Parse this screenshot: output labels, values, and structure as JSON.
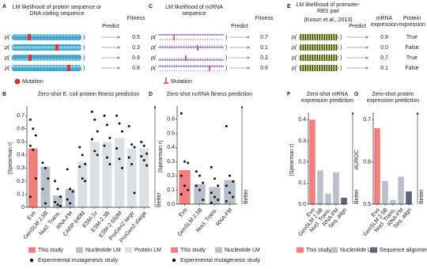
{
  "schematics": [
    {
      "panel": "A",
      "title": "LM likelihood of protein sequence or DNA coding sequence",
      "predict": "Predict",
      "prefix": "p(",
      "suffix": ")",
      "headers": [
        "Fitness"
      ],
      "columns": [
        [
          "0.5",
          "0.3",
          "0.9",
          "0.8"
        ]
      ],
      "legend": "Mutation"
    },
    {
      "panel": "C",
      "title": "LM likelihood of ncRNA sequence",
      "predict": "Predict",
      "prefix": "p(",
      "suffix": ")",
      "headers": [
        "Fitness"
      ],
      "columns": [
        [
          "0.7",
          "0.1",
          "0.2",
          "0.6"
        ]
      ],
      "legend": "Mutation"
    },
    {
      "panel": "E",
      "title": "LM likelihood of promoter-RBS pair",
      "source": "(Kosuri et al., 2013)",
      "predict": "Predict",
      "prefix": "p(",
      "suffix": ")",
      "headers": [
        "mRNA expression",
        "Protein expression"
      ],
      "columns": [
        [
          "0.8",
          "0.0",
          "0.7",
          "0.1"
        ],
        [
          "True",
          "False",
          "True",
          "False"
        ]
      ]
    }
  ],
  "chart_data": [
    {
      "panel": "B",
      "type": "bar",
      "title": "Zero-shot E. coli protein fitness prediction",
      "ylabel": "|Spearman r|",
      "categories": [
        "Evo",
        "GenSLM 2.5B",
        "Nucl. Trans.",
        "RNA-FM",
        "CARP 640M",
        "ESM-1v",
        "ESM-2 3B",
        "ESM-2 650M",
        "ProGen2 large",
        "ProGen2 xlarge"
      ],
      "values": [
        0.45,
        0.31,
        0.09,
        0.14,
        0.35,
        0.5,
        0.5,
        0.53,
        0.45,
        0.45
      ],
      "colors": [
        "#f08080",
        "#b9bfcb",
        "#b9bfcb",
        "#b9bfcb",
        "#dcdfe4",
        "#dcdfe4",
        "#dcdfe4",
        "#dcdfe4",
        "#dcdfe4",
        "#dcdfe4"
      ],
      "points": [
        [
          0.67,
          0.6,
          0.55,
          0.47,
          0.44,
          0.22,
          0.08
        ],
        [
          0.34,
          0.3,
          0.22,
          0.14,
          0.03
        ],
        [
          0.2,
          0.14,
          0.08,
          0.04,
          0.02,
          0.01
        ],
        [
          0.29,
          0.14,
          0.12,
          0.06,
          0.03
        ],
        [
          0.46,
          0.4,
          0.33,
          0.31,
          0.22,
          0.2
        ],
        [
          0.73,
          0.67,
          0.58,
          0.52,
          0.43,
          0.4
        ],
        [
          0.7,
          0.63,
          0.53,
          0.47,
          0.38,
          0.33
        ],
        [
          0.7,
          0.64,
          0.58,
          0.45,
          0.37,
          0.3
        ],
        [
          0.62,
          0.48,
          0.46,
          0.38,
          0.33,
          0.11
        ],
        [
          0.5,
          0.47,
          0.41,
          0.39,
          0.36,
          0.32
        ]
      ],
      "point_color": "#111111",
      "ylim": [
        0,
        0.75
      ],
      "yticks": [
        0,
        0.1,
        0.2,
        0.3,
        0.4,
        0.5,
        0.6,
        0.7
      ],
      "annotation": "Better",
      "legend": [
        {
          "name": "This study",
          "color": "#f08080"
        },
        {
          "name": "Nucleotide LM",
          "color": "#b9bfcb"
        },
        {
          "name": "Protein LM",
          "color": "#dcdfe4"
        },
        {
          "name": "Experimental mutagenesis study",
          "color": "#111111",
          "marker": "dot"
        }
      ]
    },
    {
      "panel": "D",
      "type": "bar",
      "title": "Zero-shot ncRNA fitness prediction",
      "ylabel": "|Spearman r|",
      "categories": [
        "Evo",
        "GenSLM 2.5B",
        "Nucl. Trans.",
        "RNA-FM"
      ],
      "values": [
        0.24,
        0.14,
        0.12,
        0.17
      ],
      "colors": [
        "#f08080",
        "#b9bfcb",
        "#b9bfcb",
        "#b9bfcb"
      ],
      "points": [
        [
          0.64,
          0.3,
          0.29,
          0.2,
          0.13,
          0.1,
          0.07
        ],
        [
          0.23,
          0.2,
          0.15,
          0.13,
          0.1,
          0.03
        ],
        [
          0.26,
          0.18,
          0.13,
          0.08,
          0.05,
          0.03,
          0.01
        ],
        [
          0.55,
          0.2,
          0.16,
          0.13,
          0.08,
          0.05,
          0.02
        ]
      ],
      "point_color": "#111111",
      "ylim": [
        0,
        0.67
      ],
      "yticks": [
        {
          "value": 0,
          "label": "0.0"
        },
        0.1,
        0.2,
        0.3,
        0.4,
        0.5,
        0.6
      ],
      "annotation": "Better",
      "legend": [
        {
          "name": "This study",
          "color": "#f08080"
        },
        {
          "name": "Nucleotide LM",
          "color": "#b9bfcb"
        },
        {
          "name": "Experimental mutagenesis study",
          "color": "#111111",
          "marker": "dot"
        }
      ]
    },
    {
      "panel": "F",
      "type": "bar",
      "title": "Zero-shot mRNA expression prediction",
      "ylabel": "|Spearman r|",
      "categories": [
        "Evo",
        "GenSLM 2.5B",
        "Nucl. Trans.",
        "RNA-FM",
        "Seq. align"
      ],
      "values": [
        0.4,
        0.16,
        0.05,
        0.15,
        0.03
      ],
      "colors": [
        "#f08080",
        "#b9bfcb",
        "#b9bfcb",
        "#b9bfcb",
        "#5b6478"
      ],
      "ylim": [
        0,
        0.42
      ],
      "yticks": [
        {
          "value": 0,
          "label": "0.0"
        },
        0.1,
        0.2,
        0.3,
        0.4
      ],
      "annotation": "Better",
      "legend": [
        {
          "name": "This study",
          "color": "#f08080"
        },
        {
          "name": "Nucleotide LM",
          "color": "#b9bfcb"
        },
        {
          "name": "Sequence alignment",
          "color": "#5b6478"
        }
      ]
    },
    {
      "panel": "G",
      "type": "bar",
      "title": "Zero-shot protein expression prediction",
      "ylabel": "AUROC",
      "categories": [
        "Evo",
        "GenSLM 2.5B",
        "Nucl. Trans.",
        "RNA-FM",
        "Seq. align"
      ],
      "values": [
        0.68,
        0.555,
        0.51,
        0.565,
        0.53
      ],
      "colors": [
        "#f08080",
        "#b9bfcb",
        "#b9bfcb",
        "#b9bfcb",
        "#5b6478"
      ],
      "ylim": [
        0.5,
        0.71
      ],
      "yticks": [
        0.5,
        0.6,
        0.7
      ],
      "annotation": "Better"
    }
  ]
}
